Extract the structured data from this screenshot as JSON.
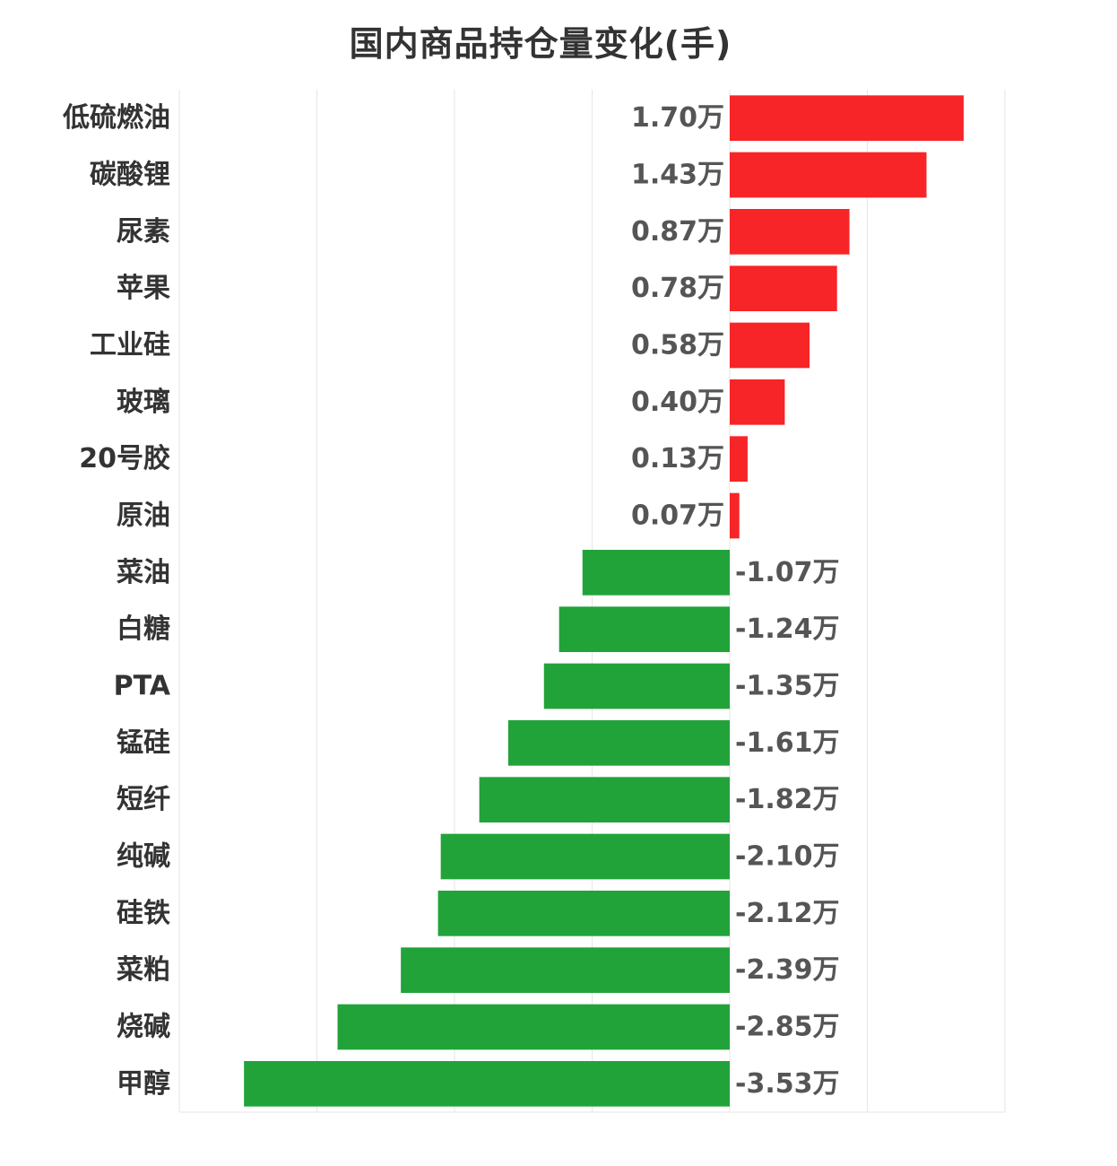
{
  "chart_data": {
    "type": "bar",
    "orientation": "horizontal",
    "title": "国内商品持仓量变化(手)",
    "unit_suffix": "万",
    "categories": [
      "低硫燃油",
      "碳酸锂",
      "尿素",
      "苹果",
      "工业硅",
      "玻璃",
      "20号胶",
      "原油",
      "菜油",
      "白糖",
      "PTA",
      "锰硅",
      "短纤",
      "纯碱",
      "硅铁",
      "菜粕",
      "烧碱",
      "甲醇"
    ],
    "values": [
      1.7,
      1.43,
      0.87,
      0.78,
      0.58,
      0.4,
      0.13,
      0.07,
      -1.07,
      -1.24,
      -1.35,
      -1.61,
      -1.82,
      -2.1,
      -2.12,
      -2.39,
      -2.85,
      -3.53
    ],
    "value_labels": [
      "1.70万",
      "1.43万",
      "0.87万",
      "0.78万",
      "0.58万",
      "0.40万",
      "0.13万",
      "0.07万",
      "-1.07万",
      "-1.24万",
      "-1.35万",
      "-1.61万",
      "-1.82万",
      "-2.10万",
      "-2.12万",
      "-2.39万",
      "-2.85万",
      "-3.53万"
    ],
    "xlim": [
      -4,
      2
    ],
    "grid": true,
    "legend": "none",
    "colors": {
      "positive": "#f72527",
      "negative": "#21a33a",
      "grid": "#e6e6e6",
      "text": "#333333",
      "label": "#555555"
    }
  }
}
